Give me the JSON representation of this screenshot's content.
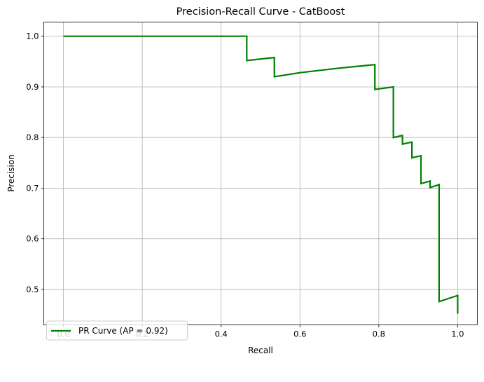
{
  "chart_data": {
    "type": "line",
    "title": "Precision-Recall Curve - CatBoost",
    "xlabel": "Recall",
    "ylabel": "Precision",
    "xlim": [
      -0.05,
      1.05
    ],
    "ylim": [
      0.43,
      1.028
    ],
    "x_ticks": [
      "0.0",
      "0.2",
      "0.4",
      "0.6",
      "0.8",
      "1.0"
    ],
    "y_ticks": [
      "0.5",
      "0.6",
      "0.7",
      "0.8",
      "0.9",
      "1.0"
    ],
    "grid": true,
    "legend_position": "lower-left",
    "series": [
      {
        "name": "PR Curve (AP = 0.92)",
        "color": "#008000",
        "x": [
          0.0,
          0.465,
          0.465,
          0.535,
          0.535,
          0.6,
          0.7,
          0.79,
          0.79,
          0.837,
          0.837,
          0.86,
          0.86,
          0.884,
          0.884,
          0.907,
          0.907,
          0.93,
          0.93,
          0.953,
          0.953,
          1.0,
          1.0
        ],
        "y": [
          1.0,
          1.0,
          0.952,
          0.958,
          0.92,
          0.928,
          0.937,
          0.944,
          0.895,
          0.9,
          0.8,
          0.804,
          0.787,
          0.791,
          0.76,
          0.764,
          0.709,
          0.714,
          0.701,
          0.707,
          0.476,
          0.488,
          0.452
        ]
      }
    ]
  }
}
